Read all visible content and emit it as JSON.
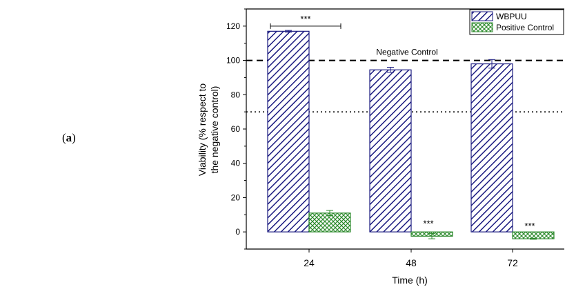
{
  "panel_label": {
    "open": "(",
    "letter": "a",
    "close": ")"
  },
  "chart_data": {
    "type": "bar",
    "title": "",
    "xlabel": "Time (h)",
    "ylabel_lines": [
      "Viability (% respect to",
      "the negative control)"
    ],
    "categories": [
      "24",
      "48",
      "72"
    ],
    "ylim": [
      -10,
      130
    ],
    "yticks": [
      0,
      20,
      40,
      60,
      80,
      100,
      120
    ],
    "grid": false,
    "legend_position": "top-right",
    "series": [
      {
        "name": "WBPUU",
        "values": [
          117,
          94.5,
          98
        ],
        "errors": [
          0.5,
          1.5,
          2.5
        ],
        "color": "#1a1a80",
        "pattern": "diagonal-hatch"
      },
      {
        "name": "Positive Control",
        "values": [
          11,
          -2.5,
          -4
        ],
        "errors": [
          1.5,
          1.5,
          0.3
        ],
        "color": "#2e8b2e",
        "pattern": "crosshatch"
      }
    ],
    "reference_lines": [
      {
        "y": 100,
        "style": "dashed",
        "label": "Negative Control"
      },
      {
        "y": 70,
        "style": "dotted",
        "label": ""
      }
    ],
    "annotations": [
      {
        "text": "***",
        "kind": "bracket",
        "from_category": "24",
        "to_category": "24",
        "y": 120
      },
      {
        "text": "***",
        "kind": "above-bar",
        "category": "48",
        "series": 1
      },
      {
        "text": "***",
        "kind": "above-bar",
        "category": "72",
        "series": 1
      }
    ]
  }
}
